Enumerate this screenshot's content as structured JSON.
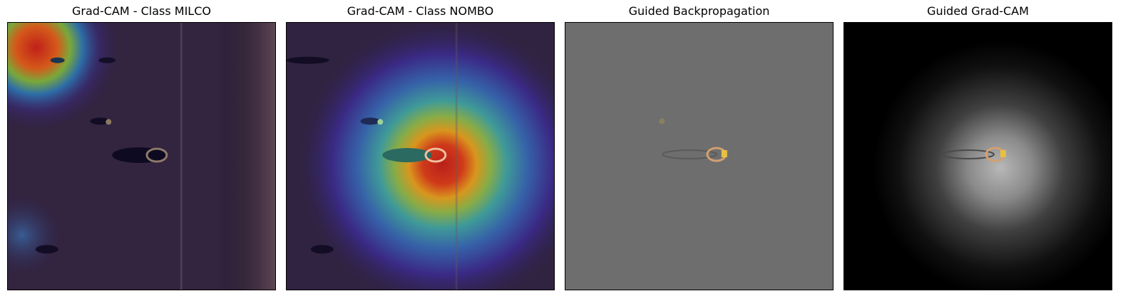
{
  "figure": {
    "panels": [
      {
        "title": "Grad-CAM - Class MILCO",
        "image": "sonar-seafloor-heatmap-overlay"
      },
      {
        "title": "Grad-CAM - Class NOMBO",
        "image": "sonar-seafloor-heatmap-overlay"
      },
      {
        "title": "Guided Backpropagation",
        "image": "gray-gradient-map"
      },
      {
        "title": "Guided Grad-CAM",
        "image": "dark-guided-gradcam-map"
      }
    ]
  }
}
